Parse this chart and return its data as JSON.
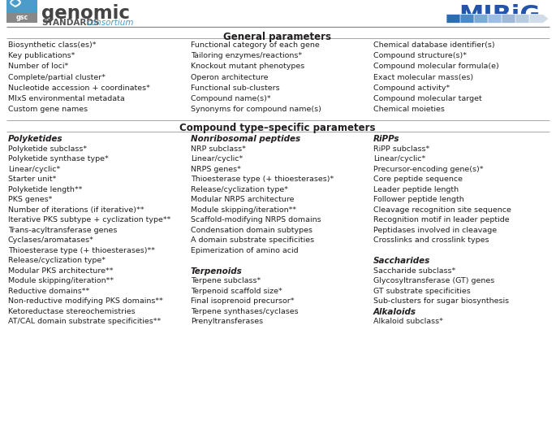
{
  "title_general": "General parameters",
  "title_compound": "Compound type–specific parameters",
  "general_col1": [
    "Biosynthetic class(es)*",
    "Key publications*",
    "Number of loci*",
    "Complete/partial cluster*",
    "Nucleotide accession + coordinates*",
    "MIxS environmental metadata",
    "Custom gene names"
  ],
  "general_col2": [
    "Functional category of each gene",
    "Tailoring enzymes/reactions*",
    "Knockout mutant phenotypes",
    "Operon architecture",
    "Functional sub-clusters",
    "Compound name(s)*",
    "Synonyms for compound name(s)"
  ],
  "general_col3": [
    "Chemical database identifier(s)",
    "Compound structure(s)*",
    "Compound molecular formula(e)",
    "Exact molecular mass(es)",
    "Compound activity*",
    "Compound molecular target",
    "Chemical moieties"
  ],
  "polyketides_header": "Polyketides",
  "polyketides": [
    "Polyketide subclass*",
    "Polyketide synthase type*",
    "Linear/cyclic*",
    "Starter unit*",
    "Polyketide length**",
    "PKS genes*",
    "Number of iterations (if iterative)**",
    "Iterative PKS subtype + cyclization type**",
    "Trans-acyltransferase genes",
    "Cyclases/aromatases*",
    "Thioesterase type (+ thioesterases)**",
    "Release/cyclization type*",
    "Modular PKS architecture**",
    "Module skipping/iteration**",
    "Reductive domains**",
    "Non-reductive modifying PKS domains**",
    "Ketoreductase stereochemistries",
    "AT/CAL domain substrate specificities**"
  ],
  "nrp_header": "Nonribosomal peptides",
  "nrp_items": [
    "NRP subclass*",
    "Linear/cyclic*",
    "NRPS genes*",
    "Thioesterase type (+ thioesterases)*",
    "Release/cyclization type*",
    "Modular NRPS architecture",
    "Module skipping/iteration**",
    "Scaffold-modifying NRPS domains",
    "Condensation domain subtypes",
    "A domain substrate specificities",
    "Epimerization of amino acid"
  ],
  "terpenoids_header": "Terpenoids",
  "terpenoids": [
    "Terpene subclass*",
    "Terpenoid scaffold size*",
    "Final isoprenoid precursor*",
    "Terpene synthases/cyclases",
    "Prenyltransferases"
  ],
  "ripps_header": "RiPPs",
  "ripps": [
    "RiPP subclass*",
    "Linear/cyclic*",
    "Precursor-encoding gene(s)*",
    "Core peptide sequence",
    "Leader peptide length",
    "Follower peptide length",
    "Cleavage recognition site sequence",
    "Recognition motif in leader peptide",
    "Peptidases involved in cleavage",
    "Crosslinks and crosslink types"
  ],
  "saccharides_header": "Saccharides",
  "saccharides": [
    "Saccharide subclass*",
    "Glycosyltransferase (GT) genes",
    "GT substrate specificities",
    "Sub-clusters for sugar biosynthesis"
  ],
  "alkaloids_header": "Alkaloids",
  "alkaloids": [
    "Alkaloid subclass*"
  ],
  "bg_color": "#ffffff",
  "text_color": "#231f20",
  "line_color": "#aaaaaa",
  "font_size": 6.8,
  "header_font_size": 8.5,
  "section_header_font_size": 7.5,
  "gsc_logo_color": "#4a9cc9",
  "mibig_color": "#2255aa",
  "arrow_colors": [
    "#2a6db5",
    "#4a8ac8",
    "#7aaad8",
    "#9bbde8",
    "#a0b8d8",
    "#b8cce0",
    "#d0dce8"
  ],
  "consortium_color": "#4a9cc9"
}
